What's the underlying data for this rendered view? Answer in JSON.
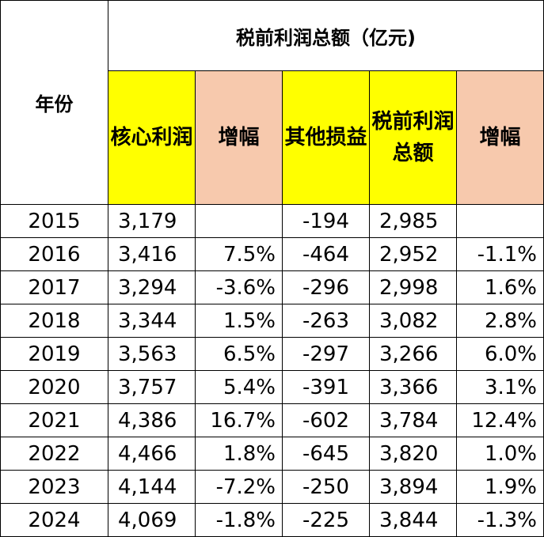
{
  "header": {
    "year_label": "年份",
    "group_label": "税前利润总额（亿元)",
    "columns": {
      "core_profit": "核心利润",
      "core_growth": "增幅",
      "other": "其他损益",
      "pretax_total": "税前利润总额",
      "total_growth": "增幅"
    }
  },
  "colors": {
    "yellow": "#ffff00",
    "salmon": "#f7c9ad"
  },
  "rows": [
    {
      "year": "2015",
      "core": "3,179",
      "core_growth": "",
      "other": "-194",
      "total": "2,985",
      "total_growth": ""
    },
    {
      "year": "2016",
      "core": "3,416",
      "core_growth": "7.5%",
      "other": "-464",
      "total": "2,952",
      "total_growth": "-1.1%"
    },
    {
      "year": "2017",
      "core": "3,294",
      "core_growth": "-3.6%",
      "other": "-296",
      "total": "2,998",
      "total_growth": "1.6%"
    },
    {
      "year": "2018",
      "core": "3,344",
      "core_growth": "1.5%",
      "other": "-263",
      "total": "3,082",
      "total_growth": "2.8%"
    },
    {
      "year": "2019",
      "core": "3,563",
      "core_growth": "6.5%",
      "other": "-297",
      "total": "3,266",
      "total_growth": "6.0%"
    },
    {
      "year": "2020",
      "core": "3,757",
      "core_growth": "5.4%",
      "other": "-391",
      "total": "3,366",
      "total_growth": "3.1%"
    },
    {
      "year": "2021",
      "core": "4,386",
      "core_growth": "16.7%",
      "other": "-602",
      "total": "3,784",
      "total_growth": "12.4%"
    },
    {
      "year": "2022",
      "core": "4,466",
      "core_growth": "1.8%",
      "other": "-645",
      "total": "3,820",
      "total_growth": "1.0%"
    },
    {
      "year": "2023",
      "core": "4,144",
      "core_growth": "-7.2%",
      "other": "-250",
      "total": "3,894",
      "total_growth": "1.9%"
    },
    {
      "year": "2024",
      "core": "4,069",
      "core_growth": "-1.8%",
      "other": "-225",
      "total": "3,844",
      "total_growth": "-1.3%"
    }
  ]
}
